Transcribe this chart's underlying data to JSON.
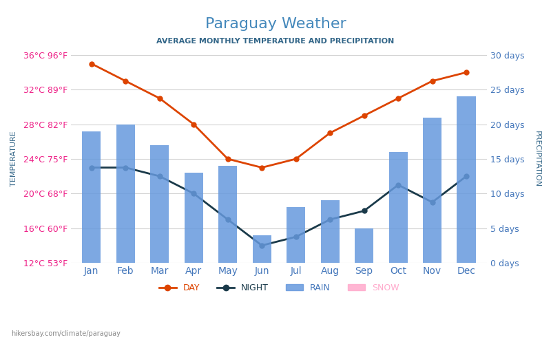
{
  "title": "Paraguay Weather",
  "subtitle": "AVERAGE MONTHLY TEMPERATURE AND PRECIPITATION",
  "months": [
    "Jan",
    "Feb",
    "Mar",
    "Apr",
    "May",
    "Jun",
    "Jul",
    "Aug",
    "Sep",
    "Oct",
    "Nov",
    "Dec"
  ],
  "day_temp": [
    35,
    33,
    31,
    28,
    24,
    23,
    24,
    27,
    29,
    31,
    33,
    34
  ],
  "night_temp": [
    23,
    23,
    22,
    20,
    17,
    14,
    15,
    17,
    18,
    21,
    19,
    22
  ],
  "rain_days": [
    19,
    20,
    17,
    13,
    14,
    4,
    8,
    9,
    5,
    16,
    21,
    24
  ],
  "bar_color": "#6699DD",
  "day_line_color": "#DD4400",
  "night_line_color": "#1A3A4A",
  "left_yticks_c": [
    12,
    16,
    20,
    24,
    28,
    32,
    36
  ],
  "left_yticks_f": [
    53,
    60,
    68,
    75,
    82,
    89,
    96
  ],
  "right_yticks_days": [
    0,
    5,
    10,
    15,
    20,
    25,
    30
  ],
  "temp_min": 12,
  "temp_max": 36,
  "rain_max": 30,
  "title_color": "#4488BB",
  "subtitle_color": "#336688",
  "left_label_color_c": "#EE2288",
  "left_label_color_f": "#EE2288",
  "right_label_color": "#4477BB",
  "axis_label_color": "#336688",
  "month_label_color": "#4477BB",
  "watermark": "hikersbay.com/climate/paraguay",
  "legend_day_color": "#DD4400",
  "legend_night_color": "#1A3A4A",
  "legend_rain_color": "#6699DD",
  "legend_snow_color": "#FFAACC"
}
